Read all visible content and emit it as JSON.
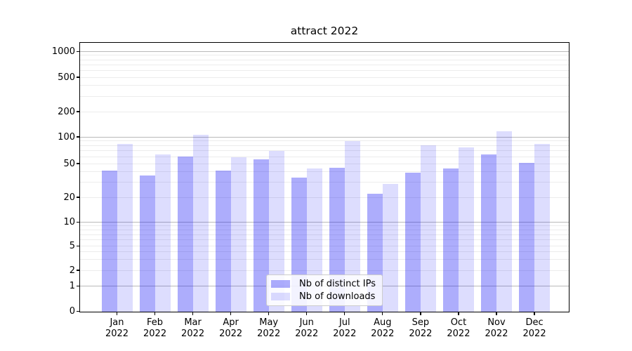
{
  "title": "attract 2022",
  "chart_data": {
    "type": "bar",
    "categories": [
      "Jan",
      "Feb",
      "Mar",
      "Apr",
      "May",
      "Jun",
      "Jul",
      "Aug",
      "Sep",
      "Oct",
      "Nov",
      "Dec"
    ],
    "category_year": "2022",
    "series": [
      {
        "name": "Nb of distinct IPs",
        "color": "rgba(15,15,245,0.34)",
        "values": [
          41,
          36,
          60,
          41,
          56,
          34,
          45,
          22,
          39,
          44,
          64,
          51
        ]
      },
      {
        "name": "Nb of downloads",
        "color": "rgba(15,15,245,0.14)",
        "values": [
          84,
          64,
          107,
          59,
          69,
          44,
          89,
          29,
          81,
          76,
          117,
          84
        ]
      }
    ],
    "yticks": [
      0,
      1,
      2,
      5,
      10,
      20,
      50,
      100,
      200,
      500,
      1000
    ],
    "ylim": [
      0,
      1300
    ],
    "yscale": "symlog",
    "xlabel": "",
    "ylabel": "",
    "grid": true,
    "legend_position": "lower center"
  },
  "colors": {
    "major_grid": "#b9b9b9",
    "minor_grid": "#ececec",
    "axis": "#000000",
    "background": "#ffffff"
  }
}
